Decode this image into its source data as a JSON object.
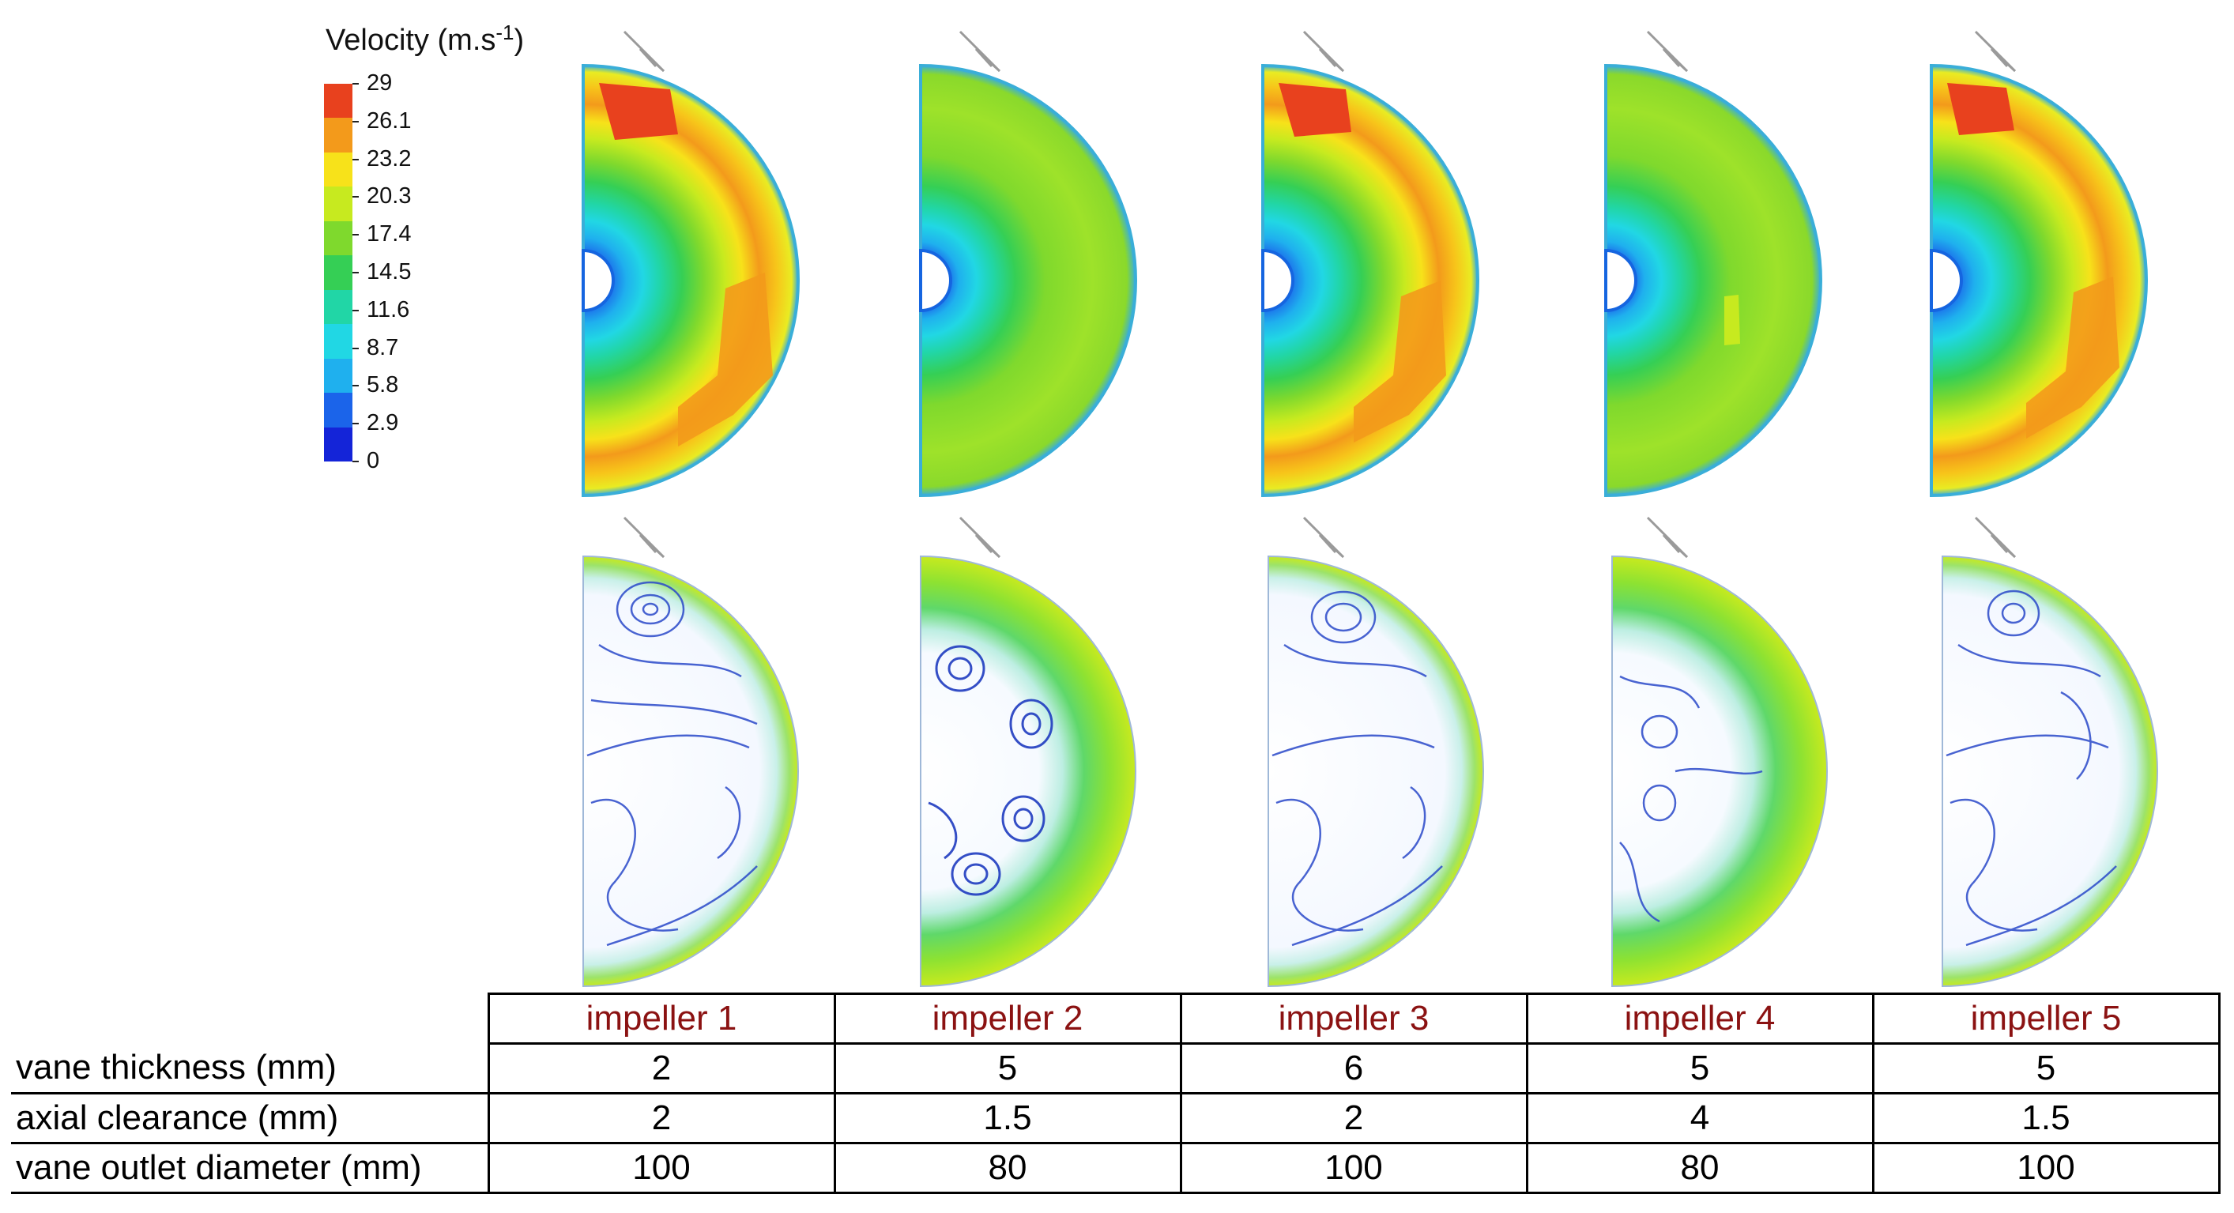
{
  "legend": {
    "title": "Velocity (m.s",
    "unit_exponent": "-1",
    "title_close": ")",
    "ticks": [
      "29",
      "26.1",
      "23.2",
      "20.3",
      "17.4",
      "14.5",
      "11.6",
      "8.7",
      "5.8",
      "2.9",
      "0"
    ],
    "colors": [
      "#e8411e",
      "#f39a1b",
      "#f7e21a",
      "#c7ea1f",
      "#7fd92d",
      "#35cf55",
      "#21d6a6",
      "#21d7e4",
      "#1fb0ee",
      "#1b64ea",
      "#1424d8"
    ]
  },
  "impellers": [
    {
      "name": "impeller 1",
      "vane_thickness": "2",
      "axial_clearance": "2",
      "vane_outlet_diameter": "100"
    },
    {
      "name": "impeller 2",
      "vane_thickness": "5",
      "axial_clearance": "1.5",
      "vane_outlet_diameter": "80"
    },
    {
      "name": "impeller 3",
      "vane_thickness": "6",
      "axial_clearance": "2",
      "vane_outlet_diameter": "100"
    },
    {
      "name": "impeller 4",
      "vane_thickness": "5",
      "axial_clearance": "4",
      "vane_outlet_diameter": "80"
    },
    {
      "name": "impeller 5",
      "vane_thickness": "5",
      "axial_clearance": "1.5",
      "vane_outlet_diameter": "100"
    }
  ],
  "table": {
    "row_labels": {
      "vane_thickness": "vane thickness (mm)",
      "axial_clearance": "axial clearance (mm)",
      "vane_outlet_diameter": "vane outlet diameter (mm)"
    }
  },
  "colors": {
    "header_text": "#8b1212",
    "rim": "#3aaed8",
    "hub": "#1565e0"
  }
}
